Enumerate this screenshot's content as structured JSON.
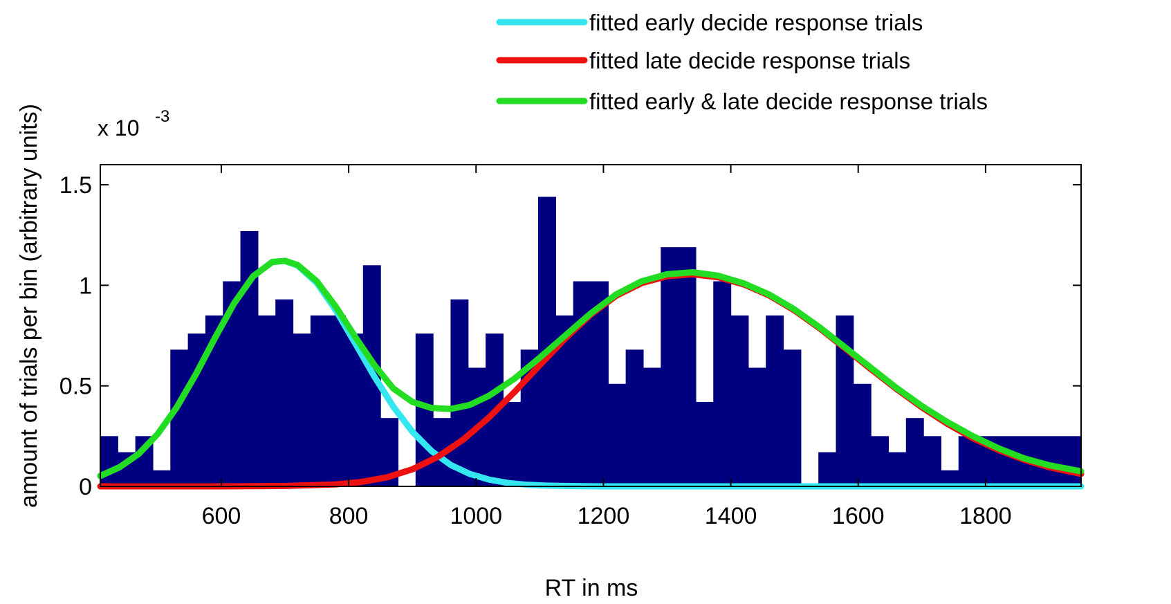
{
  "chart_data": {
    "type": "bar",
    "xlabel": "RT in ms",
    "ylabel": "amount of trials per bin (arbitrary units)",
    "y_exponent_label": "x 10",
    "y_exponent_power": "-3",
    "xlim": [
      410,
      1950
    ],
    "ylim": [
      0,
      1.6
    ],
    "x_ticks": [
      600,
      800,
      1000,
      1200,
      1400,
      1600,
      1800
    ],
    "x_tick_labels": [
      "600",
      "800",
      "1000",
      "1200",
      "1400",
      "1600",
      "1800"
    ],
    "y_ticks": [
      0,
      0.5,
      1,
      1.5
    ],
    "y_tick_labels": [
      "0",
      "0.5",
      "1",
      "1.5"
    ],
    "bar_color": "#000080",
    "bin_width": 27.5,
    "bin_centers": [
      423.75,
      451.25,
      478.75,
      506.25,
      533.75,
      561.25,
      588.75,
      616.25,
      643.75,
      671.25,
      698.75,
      726.25,
      753.75,
      781.25,
      808.75,
      836.25,
      863.75,
      891.25,
      918.75,
      946.25,
      973.75,
      1001.25,
      1028.75,
      1056.25,
      1083.75,
      1111.25,
      1138.75,
      1166.25,
      1193.75,
      1221.25,
      1248.75,
      1276.25,
      1303.75,
      1331.25,
      1358.75,
      1386.25,
      1413.75,
      1441.25,
      1468.75,
      1496.25,
      1523.75,
      1551.25,
      1578.75,
      1606.25,
      1633.75,
      1661.25,
      1688.75,
      1716.25,
      1743.75,
      1771.25,
      1798.75,
      1826.25,
      1853.75,
      1881.25,
      1908.75,
      1936.25
    ],
    "bar_values": [
      0.25,
      0.17,
      0.25,
      0.08,
      0.68,
      0.76,
      0.85,
      1.02,
      1.27,
      0.85,
      0.93,
      0.76,
      0.85,
      0.85,
      0.76,
      1.1,
      0.34,
      0.0,
      0.76,
      0.34,
      0.93,
      0.59,
      0.76,
      0.42,
      0.68,
      1.44,
      0.85,
      1.02,
      1.02,
      0.51,
      0.68,
      0.59,
      1.19,
      1.19,
      0.42,
      1.02,
      0.85,
      0.59,
      0.85,
      0.68,
      0.0,
      0.17,
      0.85,
      0.51,
      0.25,
      0.17,
      0.34,
      0.25,
      0.08,
      0.25,
      0.25,
      0.25,
      0.25,
      0.25,
      0.25,
      0.25
    ],
    "series": [
      {
        "name": "fitted early decide response trials",
        "color": "#33e6f0",
        "type": "line",
        "x": [
          410,
          440,
          470,
          500,
          530,
          560,
          590,
          620,
          650,
          680,
          700,
          720,
          750,
          780,
          810,
          840,
          870,
          900,
          930,
          960,
          990,
          1020,
          1050,
          1080,
          1110,
          1140,
          1170,
          1200,
          1230,
          1260,
          1300,
          1400,
          1500,
          1600,
          1700,
          1800,
          1950
        ],
        "y": [
          0.052,
          0.095,
          0.161,
          0.26,
          0.393,
          0.557,
          0.738,
          0.91,
          1.045,
          1.116,
          1.121,
          1.098,
          1.012,
          0.875,
          0.713,
          0.548,
          0.397,
          0.272,
          0.176,
          0.107,
          0.062,
          0.034,
          0.017,
          0.008,
          0.004,
          0.002,
          0.001,
          0.0,
          0.0,
          0.0,
          0.0,
          0.0,
          0.0,
          0.0,
          0.0,
          0.0,
          0.0
        ]
      },
      {
        "name": "fitted late decide response trials",
        "color": "#ee1111",
        "type": "line",
        "x": [
          410,
          500,
          600,
          700,
          780,
          820,
          860,
          900,
          940,
          980,
          1020,
          1060,
          1100,
          1140,
          1180,
          1220,
          1260,
          1300,
          1340,
          1380,
          1420,
          1460,
          1500,
          1540,
          1580,
          1620,
          1660,
          1700,
          1740,
          1780,
          1820,
          1860,
          1900,
          1950
        ],
        "y": [
          0.0,
          0.0,
          0.0,
          0.002,
          0.01,
          0.022,
          0.045,
          0.085,
          0.147,
          0.233,
          0.342,
          0.468,
          0.603,
          0.735,
          0.854,
          0.948,
          1.011,
          1.045,
          1.055,
          1.04,
          1.005,
          0.95,
          0.875,
          0.785,
          0.685,
          0.583,
          0.485,
          0.393,
          0.311,
          0.24,
          0.181,
          0.133,
          0.095,
          0.062
        ]
      },
      {
        "name": "fitted early & late decide response trials",
        "color": "#22dd22",
        "type": "line",
        "x": [
          410,
          440,
          470,
          500,
          530,
          560,
          590,
          620,
          650,
          680,
          700,
          720,
          750,
          780,
          810,
          840,
          870,
          900,
          930,
          960,
          990,
          1020,
          1060,
          1100,
          1140,
          1180,
          1220,
          1260,
          1300,
          1340,
          1380,
          1420,
          1460,
          1500,
          1540,
          1580,
          1620,
          1660,
          1700,
          1740,
          1780,
          1820,
          1860,
          1900,
          1950
        ],
        "y": [
          0.052,
          0.095,
          0.161,
          0.26,
          0.393,
          0.557,
          0.738,
          0.91,
          1.045,
          1.116,
          1.122,
          1.101,
          1.02,
          0.893,
          0.745,
          0.605,
          0.487,
          0.42,
          0.39,
          0.385,
          0.405,
          0.45,
          0.535,
          0.64,
          0.75,
          0.86,
          0.955,
          1.02,
          1.055,
          1.065,
          1.048,
          1.01,
          0.955,
          0.88,
          0.79,
          0.69,
          0.59,
          0.49,
          0.4,
          0.32,
          0.25,
          0.19,
          0.14,
          0.105,
          0.075
        ]
      }
    ],
    "legend_position": "top-right",
    "grid": false
  }
}
